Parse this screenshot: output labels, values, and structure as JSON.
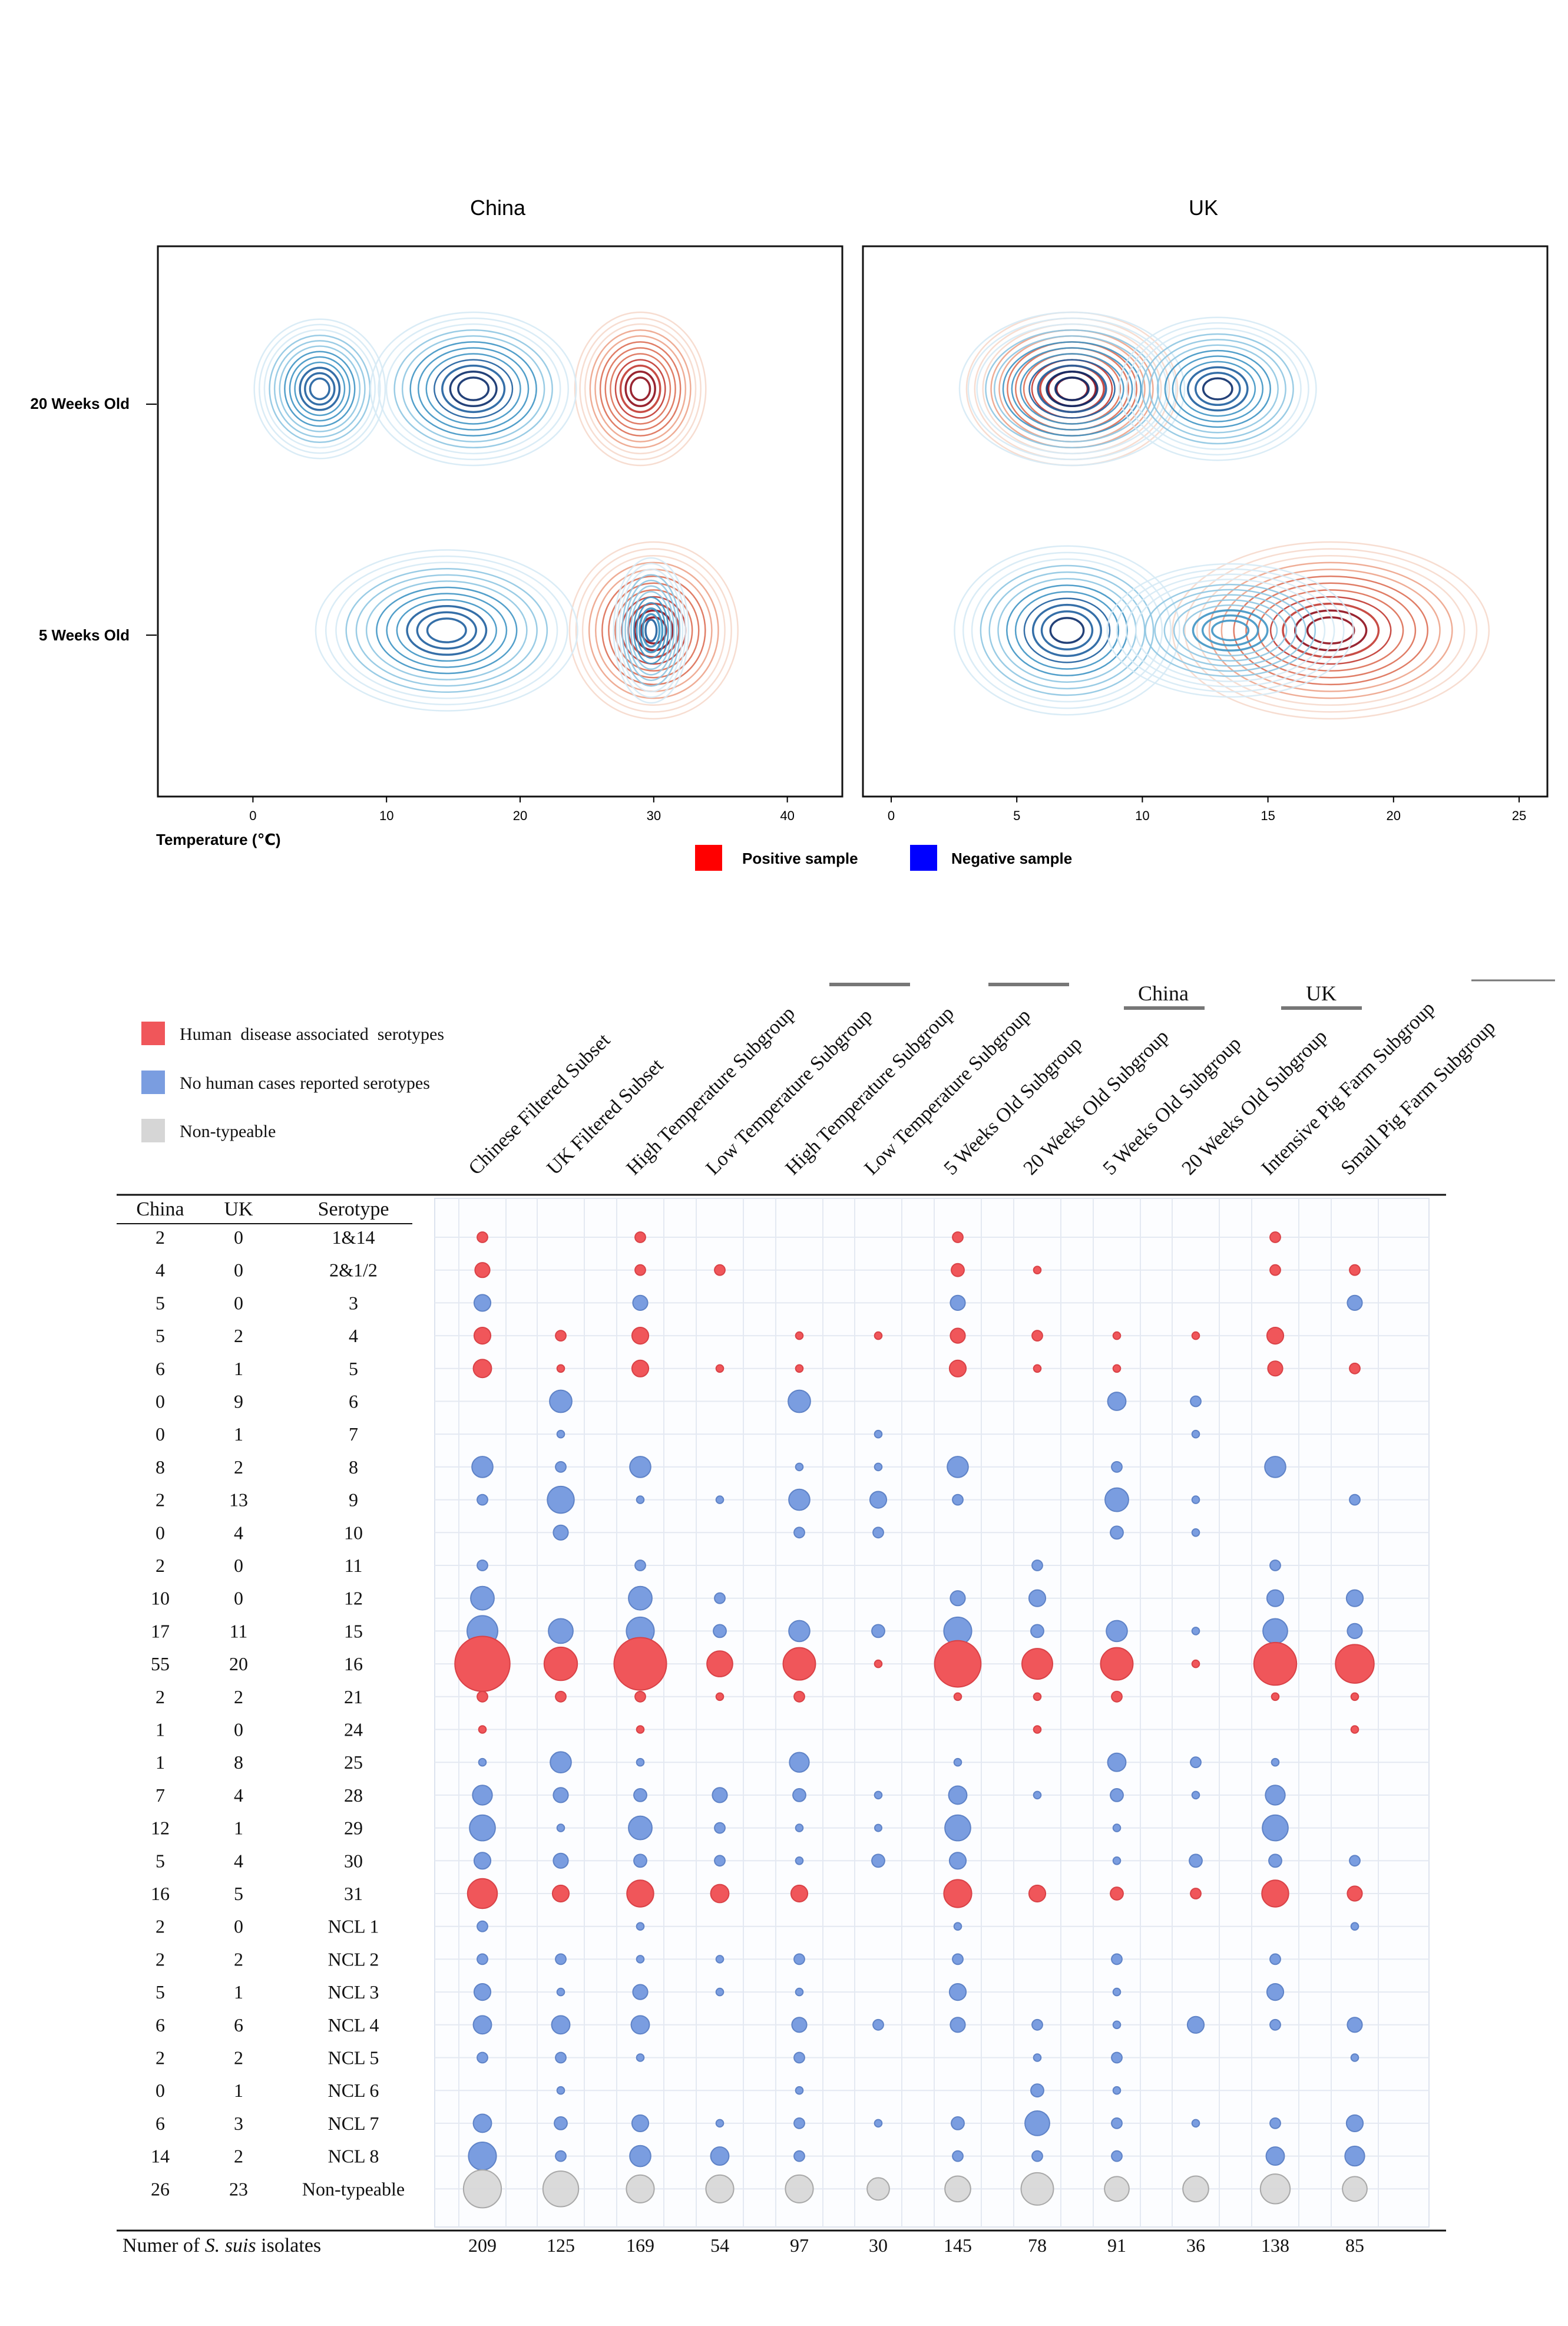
{
  "top": {
    "china_title": "China",
    "uk_title": "UK",
    "y_labels": [
      "20 Weeks Old",
      "5 Weeks Old"
    ],
    "china_x_ticks": [
      "0",
      "10",
      "20",
      "30",
      "40"
    ],
    "uk_x_ticks": [
      "0",
      "5",
      "10",
      "15",
      "20",
      "25"
    ],
    "xlabel": "Temperature (℃)",
    "legend": [
      {
        "label": "Positive sample",
        "color": "#ff0000"
      },
      {
        "label": "Negative sample",
        "color": "#0000ff"
      }
    ],
    "pos_ramp": [
      "#f6d9cc",
      "#eda48b",
      "#dd6f55",
      "#c23a32",
      "#8e0d1b"
    ],
    "neg_ramp": [
      "#d6eaf5",
      "#8fc7e2",
      "#3f95c4",
      "#1f5f9e",
      "#0c2d6a"
    ]
  },
  "chart_data": [
    {
      "type": "contour",
      "title": "China",
      "xlabel": "Temperature (℃)",
      "x_range": [
        -5,
        42
      ],
      "y_categories": [
        "20 Weeks Old",
        "5 Weeks Old"
      ],
      "series": [
        {
          "name": "Positive sample",
          "group": "20 Weeks Old",
          "peaks": [
            {
              "x": 29,
              "spread": 3.5,
              "weight": 1.0
            }
          ]
        },
        {
          "name": "Negative sample",
          "group": "20 Weeks Old",
          "peaks": [
            {
              "x": 5,
              "spread": 3.5,
              "weight": 0.8
            },
            {
              "x": 16.5,
              "spread": 5.5,
              "weight": 1.0
            }
          ]
        },
        {
          "name": "Positive sample",
          "group": "5 Weeks Old",
          "peaks": [
            {
              "x": 30,
              "spread": 4.5,
              "weight": 1.0
            }
          ]
        },
        {
          "name": "Negative sample",
          "group": "5 Weeks Old",
          "peaks": [
            {
              "x": 14.5,
              "spread": 7.0,
              "weight": 0.8
            },
            {
              "x": 29.8,
              "spread": 2.0,
              "weight": 0.6
            }
          ]
        }
      ]
    },
    {
      "type": "contour",
      "title": "UK",
      "x_range": [
        0,
        25
      ],
      "y_categories": [
        "20 Weeks Old",
        "5 Weeks Old"
      ],
      "series": [
        {
          "name": "Positive sample",
          "group": "20 Weeks Old",
          "peaks": [
            {
              "x": 7.2,
              "spread": 3.0,
              "weight": 1.0
            }
          ]
        },
        {
          "name": "Negative sample",
          "group": "20 Weeks Old",
          "peaks": [
            {
              "x": 7.2,
              "spread": 3.2,
              "weight": 1.0
            },
            {
              "x": 13,
              "spread": 2.8,
              "weight": 0.85
            }
          ]
        },
        {
          "name": "Positive sample",
          "group": "5 Weeks Old",
          "peaks": [
            {
              "x": 17.5,
              "spread": 4.5,
              "weight": 1.0
            }
          ]
        },
        {
          "name": "Negative sample",
          "group": "5 Weeks Old",
          "peaks": [
            {
              "x": 7.0,
              "spread": 3.2,
              "weight": 0.9
            },
            {
              "x": 13.5,
              "spread": 3.5,
              "weight": 0.45
            }
          ]
        }
      ]
    },
    {
      "type": "bubble",
      "legend": [
        {
          "label": "Human  disease associated  serotypes",
          "color": "#f0565a"
        },
        {
          "label": "No human cases reported serotypes",
          "color": "#7a9de0"
        },
        {
          "label": "Non-typeable",
          "color": "#d6d6d6"
        }
      ],
      "columns": [
        "Chinese Filtered Subset",
        "UK Filtered Subset",
        "High Temperature Subgroup",
        "Low Temperature Subgroup",
        "High Temperature Subgroup",
        "Low Temperature Subgroup",
        "5 Weeks Old Subgroup",
        "20 Weeks Old Subgroup",
        "5 Weeks Old Subgroup",
        "20 Weeks Old Subgroup",
        "Intensive Pig Farm Subgroup",
        "Small Pig Farm Subgroup"
      ],
      "group_labels": [
        "China",
        "UK"
      ],
      "header": [
        "China",
        "UK",
        "Serotype"
      ],
      "footer_label_pre": "Numer of ",
      "footer_label_italic": "S. suis",
      "footer_label_post": " isolates",
      "totals": [
        "209",
        "125",
        "169",
        "54",
        "97",
        "30",
        "145",
        "78",
        "91",
        "36",
        "138",
        "85"
      ],
      "rows": [
        {
          "china": "2",
          "uk": "0",
          "serotype": "1&14",
          "cls": "r",
          "v": [
            2,
            0,
            2,
            0,
            0,
            0,
            2,
            0,
            0,
            0,
            2,
            0
          ]
        },
        {
          "china": "4",
          "uk": "0",
          "serotype": "2&1/2",
          "cls": "r",
          "v": [
            4,
            0,
            2,
            2,
            0,
            0,
            3,
            1,
            0,
            0,
            2,
            2
          ]
        },
        {
          "china": "5",
          "uk": "0",
          "serotype": "3",
          "cls": "b",
          "v": [
            5,
            0,
            4,
            0,
            0,
            0,
            4,
            0,
            0,
            0,
            0,
            4
          ]
        },
        {
          "china": "5",
          "uk": "2",
          "serotype": "4",
          "cls": "r",
          "v": [
            5,
            2,
            5,
            0,
            1,
            1,
            4,
            2,
            1,
            1,
            5,
            0
          ]
        },
        {
          "china": "6",
          "uk": "1",
          "serotype": "5",
          "cls": "r",
          "v": [
            6,
            1,
            5,
            1,
            1,
            0,
            5,
            1,
            1,
            0,
            4,
            2
          ]
        },
        {
          "china": "0",
          "uk": "9",
          "serotype": "6",
          "cls": "b",
          "v": [
            0,
            9,
            0,
            0,
            9,
            0,
            0,
            0,
            6,
            2,
            0,
            0
          ]
        },
        {
          "china": "0",
          "uk": "1",
          "serotype": "7",
          "cls": "b",
          "v": [
            0,
            1,
            0,
            0,
            0,
            1,
            0,
            0,
            0,
            1,
            0,
            0
          ]
        },
        {
          "china": "8",
          "uk": "2",
          "serotype": "8",
          "cls": "b",
          "v": [
            8,
            2,
            8,
            0,
            1,
            1,
            8,
            0,
            2,
            0,
            8,
            0
          ]
        },
        {
          "china": "2",
          "uk": "13",
          "serotype": "9",
          "cls": "b",
          "v": [
            2,
            13,
            1,
            1,
            8,
            5,
            2,
            0,
            10,
            1,
            0,
            2
          ]
        },
        {
          "china": "0",
          "uk": "4",
          "serotype": "10",
          "cls": "b",
          "v": [
            0,
            4,
            0,
            0,
            2,
            2,
            0,
            0,
            3,
            1,
            0,
            0
          ]
        },
        {
          "china": "2",
          "uk": "0",
          "serotype": "11",
          "cls": "b",
          "v": [
            2,
            0,
            2,
            0,
            0,
            0,
            0,
            2,
            0,
            0,
            2,
            0
          ]
        },
        {
          "china": "10",
          "uk": "0",
          "serotype": "12",
          "cls": "b",
          "v": [
            10,
            0,
            10,
            2,
            0,
            0,
            4,
            5,
            0,
            0,
            5,
            5
          ]
        },
        {
          "china": "17",
          "uk": "11",
          "serotype": "15",
          "cls": "b",
          "v": [
            17,
            11,
            14,
            3,
            8,
            3,
            14,
            3,
            8,
            1,
            11,
            4
          ]
        },
        {
          "china": "55",
          "uk": "20",
          "serotype": "16",
          "cls": "r",
          "v": [
            55,
            20,
            50,
            12,
            19,
            1,
            39,
            17,
            19,
            1,
            33,
            27
          ]
        },
        {
          "china": "2",
          "uk": "2",
          "serotype": "21",
          "cls": "r",
          "v": [
            2,
            2,
            2,
            1,
            2,
            0,
            1,
            1,
            2,
            0,
            1,
            1
          ]
        },
        {
          "china": "1",
          "uk": "0",
          "serotype": "24",
          "cls": "r",
          "v": [
            1,
            0,
            1,
            0,
            0,
            0,
            0,
            1,
            0,
            0,
            0,
            1
          ]
        },
        {
          "china": "1",
          "uk": "8",
          "serotype": "25",
          "cls": "b",
          "v": [
            1,
            8,
            1,
            0,
            7,
            0,
            1,
            0,
            6,
            2,
            1,
            0
          ]
        },
        {
          "china": "7",
          "uk": "4",
          "serotype": "28",
          "cls": "b",
          "v": [
            7,
            4,
            3,
            4,
            3,
            1,
            6,
            1,
            3,
            1,
            7,
            0
          ]
        },
        {
          "china": "12",
          "uk": "1",
          "serotype": "29",
          "cls": "b",
          "v": [
            12,
            1,
            10,
            2,
            1,
            0.5,
            12,
            0,
            1,
            0,
            12,
            0
          ]
        },
        {
          "china": "5",
          "uk": "4",
          "serotype": "30",
          "cls": "b",
          "v": [
            5,
            4,
            3,
            2,
            1,
            3,
            5,
            0,
            1,
            3,
            3,
            2
          ]
        },
        {
          "china": "16",
          "uk": "5",
          "serotype": "31",
          "cls": "r",
          "v": [
            16,
            5,
            13,
            6,
            5,
            0,
            14,
            5,
            3,
            2,
            13,
            4
          ]
        },
        {
          "china": "2",
          "uk": "0",
          "serotype": "NCL 1",
          "cls": "b",
          "v": [
            2,
            0,
            1,
            0,
            0,
            0,
            1,
            0,
            0,
            0,
            0,
            1
          ]
        },
        {
          "china": "2",
          "uk": "2",
          "serotype": "NCL 2",
          "cls": "b",
          "v": [
            2,
            2,
            1,
            1,
            2,
            0,
            2,
            0,
            2,
            0,
            2,
            0
          ]
        },
        {
          "china": "5",
          "uk": "1",
          "serotype": "NCL 3",
          "cls": "b",
          "v": [
            5,
            1,
            4,
            1,
            1,
            0,
            5,
            0,
            1,
            0,
            5,
            0
          ]
        },
        {
          "china": "6",
          "uk": "6",
          "serotype": "NCL 4",
          "cls": "b",
          "v": [
            6,
            6,
            6,
            0,
            4,
            2,
            4,
            2,
            1,
            5,
            2,
            4
          ]
        },
        {
          "china": "2",
          "uk": "2",
          "serotype": "NCL 5",
          "cls": "b",
          "v": [
            2,
            2,
            1,
            0,
            2,
            0,
            0,
            1,
            2,
            0,
            0,
            1
          ]
        },
        {
          "china": "0",
          "uk": "1",
          "serotype": "NCL 6",
          "cls": "b",
          "v": [
            0,
            1,
            0,
            0,
            1,
            0,
            0,
            3,
            1,
            0,
            0,
            0
          ]
        },
        {
          "china": "6",
          "uk": "3",
          "serotype": "NCL 7",
          "cls": "b",
          "v": [
            6,
            3,
            5,
            1,
            2,
            1,
            3,
            11,
            2,
            1,
            2,
            5
          ]
        },
        {
          "china": "14",
          "uk": "2",
          "serotype": "NCL 8",
          "cls": "b",
          "v": [
            14,
            2,
            8,
            6,
            2,
            0,
            2,
            2,
            2,
            0,
            6,
            7
          ]
        },
        {
          "china": "26",
          "uk": "23",
          "serotype": "Non-typeable",
          "cls": "g",
          "v": [
            26,
            23,
            14,
            14,
            14,
            9,
            12,
            19,
            11,
            12,
            16,
            11
          ]
        }
      ]
    }
  ]
}
